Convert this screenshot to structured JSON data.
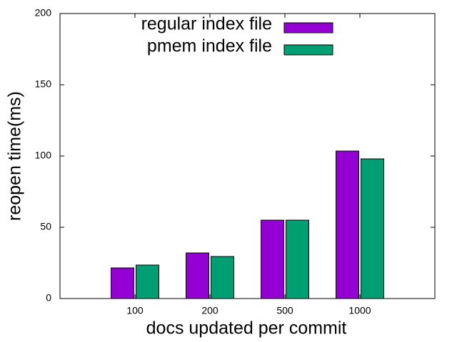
{
  "chart_data": {
    "type": "bar",
    "x_label": "docs updated per commit",
    "y_label": "reopen time(ms)",
    "categories": [
      "100",
      "200",
      "500",
      "1000"
    ],
    "series": [
      {
        "name": "regular index file",
        "color": "#9400d3",
        "values": [
          21.5,
          32,
          55,
          103.5
        ]
      },
      {
        "name": "pmem index file",
        "color": "#009e73",
        "values": [
          23.5,
          29.5,
          55,
          98
        ]
      }
    ],
    "ylim": [
      0,
      200
    ],
    "yticks": [
      0,
      50,
      100,
      150,
      200
    ]
  }
}
